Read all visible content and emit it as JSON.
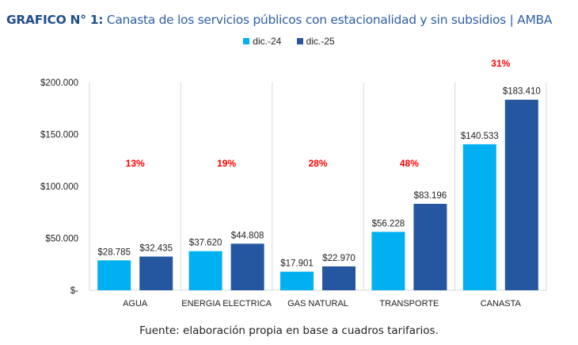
{
  "title": {
    "bold": "GRAFICO N° 1:",
    "rest": " Canasta de los servicios públicos con estacionalidad y sin subsidios | AMBA"
  },
  "legend": [
    {
      "label": "dic.-24",
      "color": "#00b0f0"
    },
    {
      "label": "dic.-25",
      "color": "#2457a0"
    }
  ],
  "source": "Fuente: elaboración propia en base a cuadros tarifarios.",
  "chart_data": {
    "type": "bar",
    "title": "Canasta de los servicios públicos con estacionalidad y sin subsidios | AMBA",
    "xlabel": "",
    "ylabel": "",
    "ylim": [
      0,
      200000
    ],
    "yticks": [
      0,
      50000,
      100000,
      150000,
      200000
    ],
    "ytick_labels": [
      "$-",
      "$50.000",
      "$100.000",
      "$150.000",
      "$200.000"
    ],
    "categories": [
      "AGUA",
      "ENERGIA ELECTRICA",
      "GAS NATURAL",
      "TRANSPORTE",
      "CANASTA"
    ],
    "series": [
      {
        "name": "dic.-24",
        "color": "#00b0f0",
        "values": [
          28785,
          37620,
          17901,
          56228,
          140533
        ],
        "labels": [
          "$28.785",
          "$37.620",
          "$17.901",
          "$56.228",
          "$140.533"
        ]
      },
      {
        "name": "dic.-25",
        "color": "#2457a0",
        "values": [
          32435,
          44808,
          22970,
          83196,
          183410
        ],
        "labels": [
          "$32.435",
          "$44.808",
          "$22.970",
          "$83.196",
          "$183.410"
        ]
      }
    ],
    "annotations": [
      {
        "category": "AGUA",
        "text": "13%"
      },
      {
        "category": "ENERGIA ELECTRICA",
        "text": "19%"
      },
      {
        "category": "GAS NATURAL",
        "text": "28%"
      },
      {
        "category": "TRANSPORTE",
        "text": "48%"
      },
      {
        "category": "CANASTA",
        "text": "31%"
      }
    ],
    "annotation_color": "#ff0000",
    "grid": "vertical category separators",
    "legend_position": "top-center"
  }
}
